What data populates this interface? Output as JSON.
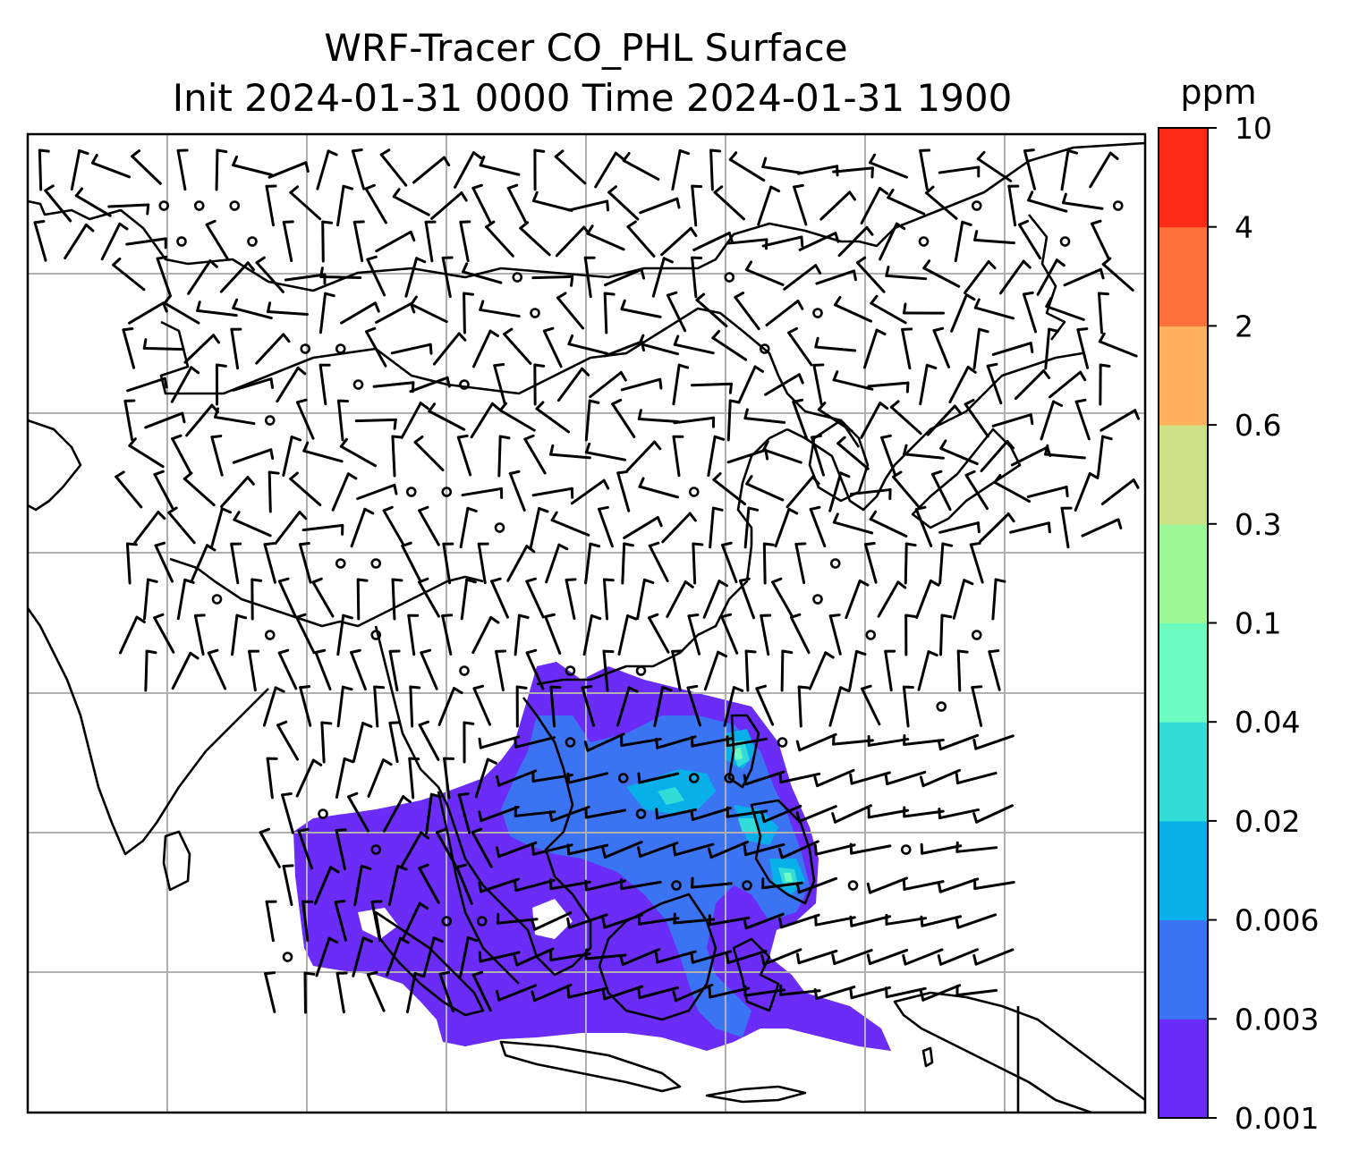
{
  "title": {
    "line1": "WRF-Tracer CO_PHL Surface",
    "line2": "Init 2024-01-31 0000 Time 2024-01-31 1900"
  },
  "colorbar": {
    "unit": "ppm",
    "ticks": [
      "0.001",
      "0.003",
      "0.006",
      "0.02",
      "0.04",
      "0.1",
      "0.3",
      "0.6",
      "2",
      "4",
      "10"
    ],
    "colors": [
      "#6a2cf6",
      "#3b74f3",
      "#08b0ea",
      "#33dcd6",
      "#6cfbc0",
      "#9ef797",
      "#cfe186",
      "#ffb15e",
      "#ff713b",
      "#ff2a18"
    ]
  },
  "map": {
    "land_outline_color": "#000000",
    "grid_color": "#b0b0b0",
    "tracer_levels_present": [
      "0.001",
      "0.003",
      "0.006",
      "0.02",
      "0.04"
    ],
    "wind_barbs": "black"
  }
}
